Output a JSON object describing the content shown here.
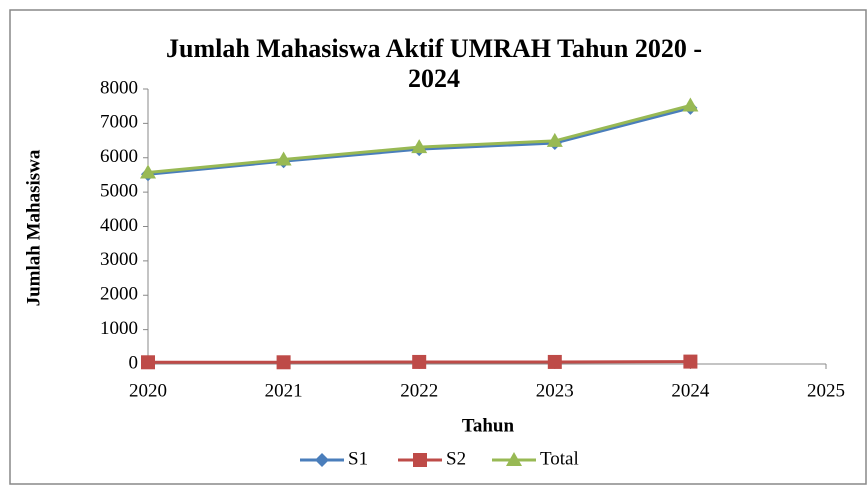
{
  "chart_data": {
    "type": "line",
    "title": "Jumlah Mahasiswa Aktif UMRAH Tahun 2020 - 2024",
    "x_label": "Tahun",
    "y_label": "Jumlah Mahasiswa",
    "x": [
      2020,
      2021,
      2022,
      2023,
      2024
    ],
    "series": [
      {
        "name": "S1",
        "color": "#4a7ebb",
        "marker": "diamond",
        "values": [
          5520,
          5900,
          6250,
          6430,
          7450
        ]
      },
      {
        "name": "S2",
        "color": "#be4b48",
        "marker": "square",
        "values": [
          50,
          50,
          60,
          60,
          70
        ]
      },
      {
        "name": "Total",
        "color": "#98b954",
        "marker": "triangle",
        "values": [
          5570,
          5950,
          6310,
          6490,
          7520
        ]
      }
    ],
    "xlim": [
      2020,
      2025
    ],
    "xticks": [
      2020,
      2021,
      2022,
      2023,
      2024,
      2025
    ],
    "ylim": [
      0,
      8000
    ],
    "yticks": [
      0,
      1000,
      2000,
      3000,
      4000,
      5000,
      6000,
      7000,
      8000
    ],
    "grid": false,
    "legend": "bottom"
  }
}
